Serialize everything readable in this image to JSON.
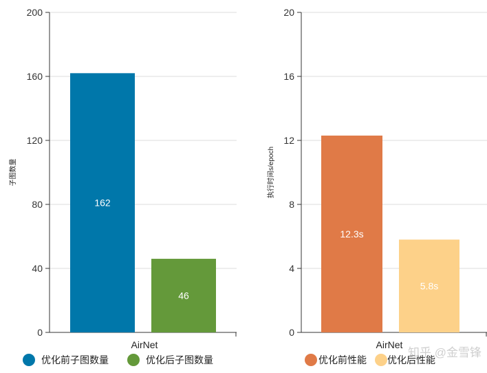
{
  "chart_data": [
    {
      "type": "bar",
      "title": "",
      "xlabel": "AirNet",
      "ylabel": "子图数量",
      "ylim": [
        0,
        200
      ],
      "yticks": [
        0,
        40,
        80,
        120,
        160,
        200
      ],
      "categories": [
        "AirNet"
      ],
      "grid": true,
      "legend_position": "bottom-left",
      "series": [
        {
          "name": "优化前子图数量",
          "values": [
            162
          ],
          "label": "162",
          "color": "#0077AA"
        },
        {
          "name": "优化后子图数量",
          "values": [
            46
          ],
          "label": "46",
          "color": "#64993A"
        }
      ]
    },
    {
      "type": "bar",
      "title": "",
      "xlabel": "AirNet",
      "ylabel": "执行时间s/epoch",
      "ylim": [
        0,
        20
      ],
      "yticks": [
        0,
        4,
        8,
        12,
        16,
        20
      ],
      "categories": [
        "AirNet"
      ],
      "grid": true,
      "legend_position": "bottom-left",
      "series": [
        {
          "name": "优化前性能",
          "values": [
            12.3
          ],
          "label": "12.3s",
          "color": "#E07A47"
        },
        {
          "name": "优化后性能",
          "values": [
            5.8
          ],
          "label": "5.8s",
          "color": "#FDD189"
        }
      ]
    }
  ],
  "watermark": "知乎 @金雪锋"
}
